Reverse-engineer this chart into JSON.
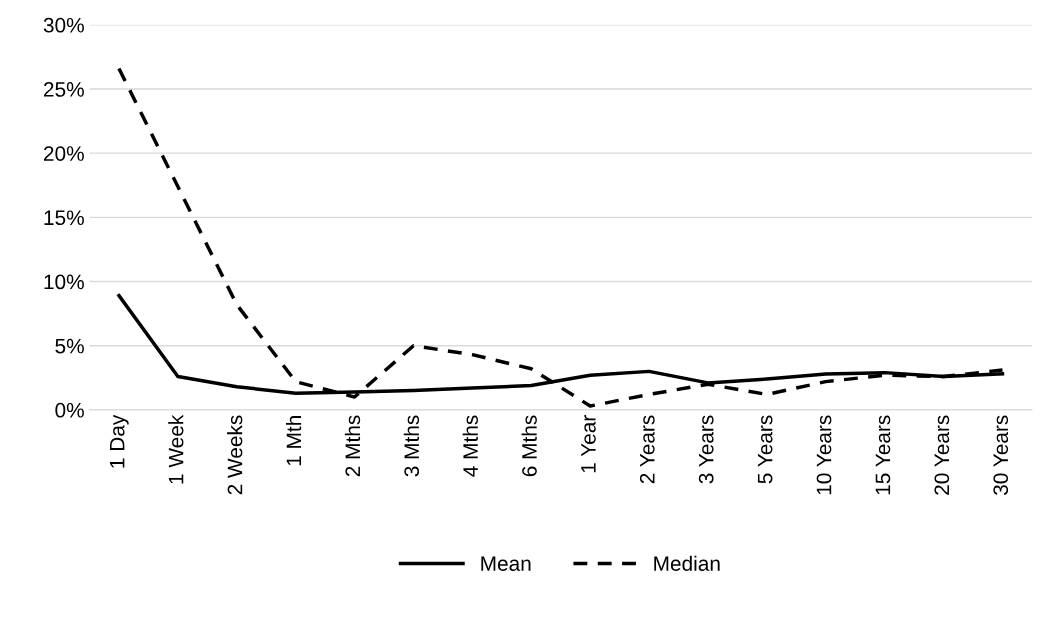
{
  "chart_data": {
    "type": "line",
    "categories": [
      "1 Day",
      "1 Week",
      "2 Weeks",
      "1 Mth",
      "2 Mths",
      "3 Mths",
      "4 Mths",
      "6 Mths",
      "1 Year",
      "2 Years",
      "3 Years",
      "5 Years",
      "10 Years",
      "15 Years",
      "20 Years",
      "30 Years"
    ],
    "series": [
      {
        "name": "Mean",
        "color": "#000000",
        "line_style": "solid",
        "values": [
          8.9,
          2.6,
          1.8,
          1.3,
          1.4,
          1.5,
          1.7,
          1.9,
          2.7,
          3.0,
          2.1,
          2.4,
          2.8,
          2.9,
          2.6,
          2.8
        ]
      },
      {
        "name": "Median",
        "color": "#000000",
        "line_style": "dashed",
        "values": [
          26.6,
          17.4,
          8.2,
          2.2,
          1.0,
          5.0,
          4.3,
          3.2,
          0.3,
          1.2,
          2.0,
          1.2,
          2.2,
          2.7,
          2.6,
          3.1
        ]
      }
    ],
    "ylim": [
      0,
      30
    ],
    "yticks": [
      {
        "value": 0,
        "label": "0%"
      },
      {
        "value": 5,
        "label": "5%"
      },
      {
        "value": 10,
        "label": "10%"
      },
      {
        "value": 15,
        "label": "15%"
      },
      {
        "value": 20,
        "label": "20%"
      },
      {
        "value": 25,
        "label": "25%"
      },
      {
        "value": 30,
        "label": "30%"
      }
    ],
    "grid": "y",
    "legend": "bottom",
    "marker": "none"
  }
}
